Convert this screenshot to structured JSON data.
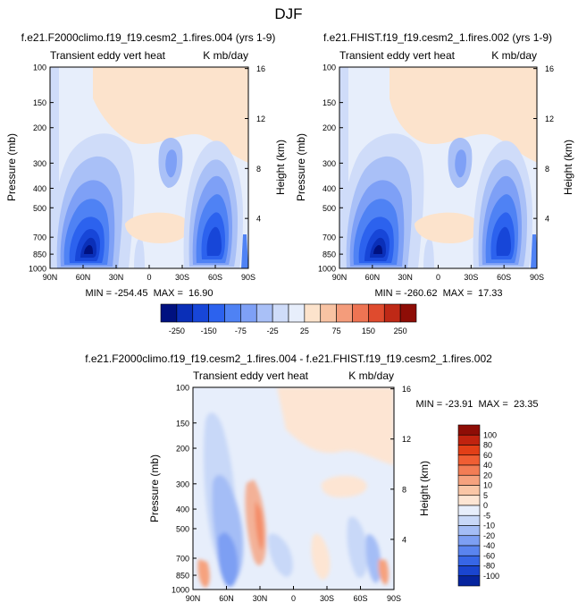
{
  "page": {
    "title": "DJF"
  },
  "colorbar_top": {
    "labels": [
      "-250",
      "-150",
      "-75",
      "-25",
      "25",
      "75",
      "150",
      "250"
    ],
    "colors": [
      "#001180",
      "#0a2fb8",
      "#1746d8",
      "#2c62ee",
      "#4f82f4",
      "#7ea0f6",
      "#a9c0f7",
      "#cfdcf9",
      "#e7eefb",
      "#fce3cc",
      "#f8c3a3",
      "#f49c7b",
      "#ee7453",
      "#df4b2e",
      "#bf2916",
      "#8e0d06"
    ]
  },
  "colorbar_diff": {
    "labels": [
      "100",
      "80",
      "60",
      "40",
      "20",
      "10",
      "5",
      "0",
      "-5",
      "-10",
      "-20",
      "-40",
      "-60",
      "-80",
      "-100"
    ],
    "colors": [
      "#8e0d06",
      "#c0230f",
      "#e23f17",
      "#f05e33",
      "#f37d55",
      "#f6a27e",
      "#fac6a6",
      "#fde5d3",
      "#e7eefb",
      "#c8d8f8",
      "#a4bdf6",
      "#7d9ff3",
      "#5a84ef",
      "#3766e6",
      "#1a45cf",
      "#06249e"
    ]
  },
  "chart_data": [
    {
      "type": "heatmap",
      "title": "f.e21.F2000climo.f19_f19.cesm2_1.fires.004 (yrs 1-9)",
      "left_label": "Transient eddy vert heat",
      "right_label": "K mb/day",
      "xlabel": "",
      "ylabel": "Pressure (mb)",
      "ylabel_right": "Height (km)",
      "x_ticks": [
        "90N",
        "60N",
        "30N",
        "0",
        "30S",
        "60S",
        "90S"
      ],
      "y_ticks": [
        "100",
        "150",
        "200",
        "300",
        "400",
        "500",
        "700",
        "850",
        "1000"
      ],
      "y_ticks_right": [
        "16",
        "12",
        "8",
        "4"
      ],
      "stats": "MIN = -254.45  MAX =  16.90",
      "min": -254.45,
      "max": 16.9,
      "ylim": [
        1000,
        100
      ],
      "xlim": [
        90,
        -90
      ],
      "contour_levels": [
        -250,
        -200,
        -150,
        -100,
        -75,
        -50,
        -25,
        -10,
        10,
        25,
        50,
        75,
        100,
        150,
        200,
        250
      ]
    },
    {
      "type": "heatmap",
      "title": "f.e21.FHIST.f19_f19.cesm2_1.fires.002 (yrs 1-9)",
      "left_label": "Transient eddy vert heat",
      "right_label": "K mb/day",
      "xlabel": "",
      "ylabel": "Pressure (mb)",
      "ylabel_right": "Height (km)",
      "x_ticks": [
        "90N",
        "60N",
        "30N",
        "0",
        "30S",
        "60S",
        "90S"
      ],
      "y_ticks": [
        "100",
        "150",
        "200",
        "300",
        "400",
        "500",
        "700",
        "850",
        "1000"
      ],
      "y_ticks_right": [
        "16",
        "12",
        "8",
        "4"
      ],
      "stats": "MIN = -260.62  MAX =  17.33",
      "min": -260.62,
      "max": 17.33,
      "ylim": [
        1000,
        100
      ],
      "xlim": [
        90,
        -90
      ]
    },
    {
      "type": "heatmap",
      "title": "f.e21.F2000climo.f19_f19.cesm2_1.fires.004 - f.e21.FHIST.f19_f19.cesm2_1.fires.002",
      "left_label": "Transient eddy vert heat",
      "right_label": "K mb/day",
      "xlabel": "",
      "ylabel": "Pressure (mb)",
      "ylabel_right": "Height (km)",
      "x_ticks": [
        "90N",
        "60N",
        "30N",
        "0",
        "30S",
        "60S",
        "90S"
      ],
      "y_ticks": [
        "100",
        "150",
        "200",
        "300",
        "400",
        "500",
        "700",
        "850",
        "1000"
      ],
      "y_ticks_right": [
        "16",
        "12",
        "8",
        "4"
      ],
      "stats": "MIN = -23.91  MAX =  23.35",
      "min": -23.91,
      "max": 23.35,
      "ylim": [
        1000,
        100
      ],
      "xlim": [
        90,
        -90
      ],
      "contour_levels": [
        -100,
        -80,
        -60,
        -40,
        -20,
        -10,
        -5,
        0,
        5,
        10,
        20,
        40,
        60,
        80,
        100
      ]
    }
  ]
}
